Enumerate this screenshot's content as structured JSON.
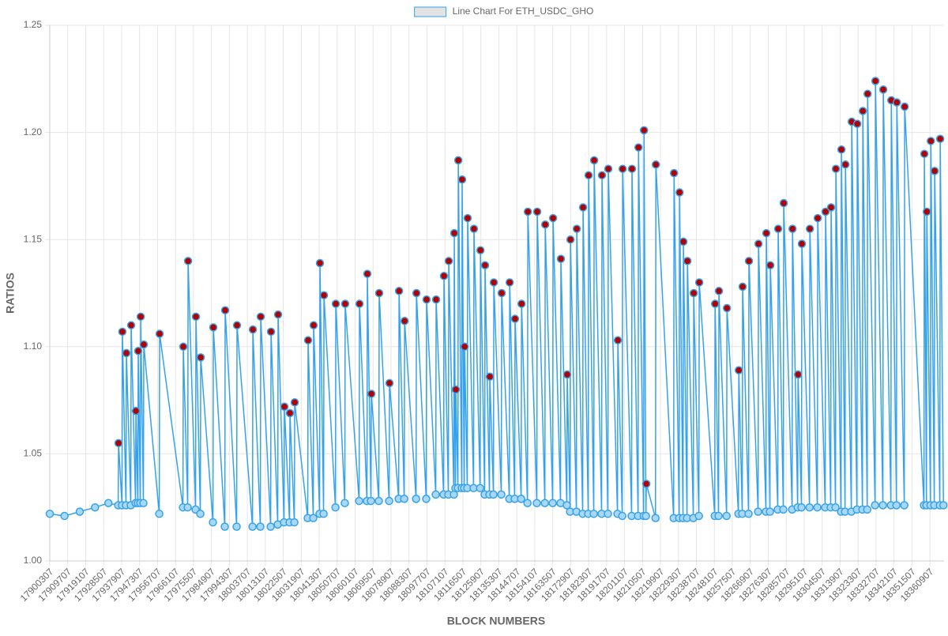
{
  "chart_data": {
    "type": "line",
    "legend_label": "Line Chart For ETH_USDC_GHO",
    "xlabel": "BLOCK NUMBERS",
    "ylabel": "RATIOS",
    "grid": true,
    "legend_position": "top",
    "xlim": [
      17900307,
      18368307
    ],
    "xticks": [
      17900307,
      17909707,
      17919107,
      17928507,
      17937907,
      17947307,
      17956707,
      17966107,
      17975507,
      17984907,
      17994307,
      18003707,
      18013107,
      18022507,
      18031907,
      18041307,
      18050707,
      18060107,
      18069507,
      18078907,
      18088307,
      18097707,
      18107107,
      18116507,
      18125907,
      18135307,
      18144707,
      18154107,
      18163507,
      18172907,
      18182307,
      18191707,
      18201107,
      18210507,
      18219907,
      18229307,
      18238707,
      18248107,
      18257507,
      18266907,
      18276307,
      18285707,
      18295107,
      18304507,
      18313907,
      18323307,
      18332707,
      18342107,
      18351507,
      18360907
    ],
    "ylim": [
      1.0,
      1.25
    ],
    "yticks": [
      {
        "value": 1.0,
        "label": "1.00"
      },
      1.05,
      {
        "value": 1.1,
        "label": "1.10"
      },
      1.15,
      {
        "value": 1.2,
        "label": "1.20"
      },
      1.25
    ],
    "series": [
      {
        "name": "Line Chart For ETH_USDC_GHO",
        "color": "#36a2eb",
        "legend_fill": "#e3e3e3",
        "x": [
          17900307,
          17908000,
          17916000,
          17924000,
          17931000,
          17936100,
          17936300,
          17938100,
          17938300,
          17940200,
          17940400,
          17942700,
          17942900,
          17945200,
          17945400,
          17946400,
          17946600,
          17947700,
          17947900,
          17949300,
          17949500,
          17957600,
          17957800,
          17970000,
          17970200,
          17972500,
          17972700,
          17976600,
          17976800,
          17979100,
          17979300,
          17985700,
          17985900,
          17991900,
          17992100,
          17998100,
          17998300,
          18006400,
          18006600,
          18010500,
          18010700,
          18015900,
          18016100,
          18019600,
          18019800,
          18022900,
          18023100,
          18025800,
          18026000,
          18028300,
          18028500,
          18035300,
          18035500,
          18038200,
          18038400,
          18041500,
          18041700,
          18043600,
          18043800,
          18049800,
          18050000,
          18054700,
          18054900,
          18062200,
          18062400,
          18066300,
          18066500,
          18068400,
          18068600,
          18072500,
          18072700,
          18077900,
          18078100,
          18082900,
          18083100,
          18085800,
          18086000,
          18092000,
          18092200,
          18097300,
          18097500,
          18102300,
          18102500,
          18106400,
          18106600,
          18108900,
          18109100,
          18111800,
          18112000,
          18112600,
          18112800,
          18113900,
          18114100,
          18115900,
          18116100,
          18117200,
          18117400,
          18118800,
          18119000,
          18122100,
          18122300,
          18125500,
          18125700,
          18127900,
          18128100,
          18130400,
          18130600,
          18132500,
          18132700,
          18136600,
          18136800,
          18140800,
          18141000,
          18143600,
          18143800,
          18147000,
          18147200,
          18150300,
          18150500,
          18155200,
          18155400,
          18159400,
          18159600,
          18163500,
          18163700,
          18167600,
          18167800,
          18170900,
          18171100,
          18172600,
          18172800,
          18175900,
          18176100,
          18179200,
          18179400,
          18182100,
          18182300,
          18185000,
          18185200,
          18189100,
          18189300,
          18192400,
          18192600,
          18197400,
          18197600,
          18199900,
          18200100,
          18204800,
          18205000,
          18208200,
          18208400,
          18211100,
          18211300,
          18212300,
          18212500,
          18217300,
          18217500,
          18226800,
          18227000,
          18229700,
          18229900,
          18231700,
          18231900,
          18233800,
          18234000,
          18237100,
          18237300,
          18240000,
          18240200,
          18248300,
          18248500,
          18250300,
          18250500,
          18254500,
          18254700,
          18260700,
          18260900,
          18262700,
          18262900,
          18266000,
          18266200,
          18271000,
          18271200,
          18275100,
          18275300,
          18277200,
          18277400,
          18281300,
          18281500,
          18284200,
          18284400,
          18288800,
          18289000,
          18291700,
          18291900,
          18293700,
          18293900,
          18297900,
          18298100,
          18302000,
          18302200,
          18306100,
          18306300,
          18309000,
          18309200,
          18311500,
          18311700,
          18314400,
          18314600,
          18316500,
          18316700,
          18319800,
          18320000,
          18322700,
          18322900,
          18325600,
          18325800,
          18328100,
          18328300,
          18332200,
          18332400,
          18336300,
          18336500,
          18340500,
          18340700,
          18343400,
          18343600,
          18347500,
          18347700,
          18357800,
          18358000,
          18359100,
          18359300,
          18361200,
          18361400,
          18363200,
          18363400,
          18366100,
          18366300,
          18368000
        ],
        "values": [
          1.022,
          1.021,
          1.023,
          1.025,
          1.027,
          1.026,
          1.055,
          1.026,
          1.107,
          1.026,
          1.097,
          1.026,
          1.11,
          1.027,
          1.07,
          1.027,
          1.098,
          1.027,
          1.114,
          1.027,
          1.101,
          1.022,
          1.106,
          1.025,
          1.1,
          1.025,
          1.14,
          1.024,
          1.114,
          1.022,
          1.095,
          1.018,
          1.109,
          1.016,
          1.117,
          1.016,
          1.11,
          1.016,
          1.108,
          1.016,
          1.114,
          1.016,
          1.107,
          1.017,
          1.115,
          1.018,
          1.072,
          1.018,
          1.069,
          1.018,
          1.074,
          1.02,
          1.103,
          1.02,
          1.11,
          1.022,
          1.139,
          1.022,
          1.124,
          1.025,
          1.12,
          1.027,
          1.12,
          1.028,
          1.12,
          1.028,
          1.134,
          1.028,
          1.078,
          1.028,
          1.125,
          1.028,
          1.083,
          1.029,
          1.126,
          1.029,
          1.112,
          1.029,
          1.125,
          1.029,
          1.122,
          1.031,
          1.122,
          1.031,
          1.133,
          1.031,
          1.14,
          1.031,
          1.153,
          1.034,
          1.08,
          1.034,
          1.187,
          1.034,
          1.178,
          1.034,
          1.1,
          1.034,
          1.16,
          1.034,
          1.155,
          1.034,
          1.145,
          1.031,
          1.138,
          1.031,
          1.086,
          1.031,
          1.13,
          1.031,
          1.125,
          1.029,
          1.13,
          1.029,
          1.113,
          1.029,
          1.12,
          1.027,
          1.163,
          1.027,
          1.163,
          1.027,
          1.157,
          1.027,
          1.16,
          1.027,
          1.141,
          1.026,
          1.087,
          1.023,
          1.15,
          1.023,
          1.155,
          1.022,
          1.165,
          1.022,
          1.18,
          1.022,
          1.187,
          1.022,
          1.18,
          1.022,
          1.183,
          1.022,
          1.103,
          1.021,
          1.183,
          1.021,
          1.183,
          1.021,
          1.193,
          1.021,
          1.201,
          1.021,
          1.036,
          1.02,
          1.185,
          1.02,
          1.181,
          1.02,
          1.172,
          1.02,
          1.149,
          1.02,
          1.14,
          1.02,
          1.125,
          1.021,
          1.13,
          1.021,
          1.12,
          1.021,
          1.126,
          1.021,
          1.118,
          1.022,
          1.089,
          1.022,
          1.128,
          1.022,
          1.14,
          1.023,
          1.148,
          1.023,
          1.153,
          1.023,
          1.138,
          1.024,
          1.155,
          1.024,
          1.167,
          1.024,
          1.155,
          1.025,
          1.087,
          1.025,
          1.148,
          1.025,
          1.155,
          1.025,
          1.16,
          1.025,
          1.163,
          1.025,
          1.165,
          1.025,
          1.183,
          1.023,
          1.192,
          1.023,
          1.185,
          1.023,
          1.205,
          1.024,
          1.204,
          1.024,
          1.21,
          1.024,
          1.218,
          1.026,
          1.224,
          1.026,
          1.22,
          1.026,
          1.215,
          1.026,
          1.214,
          1.026,
          1.212,
          1.026,
          1.19,
          1.026,
          1.163,
          1.026,
          1.196,
          1.026,
          1.182,
          1.026,
          1.197,
          1.026
        ],
        "point_colors": [
          "#a8d8f8",
          "#a8d8f8",
          "#a8d8f8",
          "#a8d8f8",
          "#a8d8f8",
          "#a8d8f8",
          "#b30000",
          "#a8d8f8",
          "#b30000",
          "#a8d8f8",
          "#b30000",
          "#a8d8f8",
          "#b30000",
          "#a8d8f8",
          "#b30000",
          "#a8d8f8",
          "#b30000",
          "#a8d8f8",
          "#b30000",
          "#a8d8f8",
          "#b30000",
          "#a8d8f8",
          "#b30000",
          "#a8d8f8",
          "#b30000",
          "#a8d8f8",
          "#b30000",
          "#a8d8f8",
          "#b30000",
          "#a8d8f8",
          "#b30000",
          "#a8d8f8",
          "#b30000",
          "#a8d8f8",
          "#b30000",
          "#a8d8f8",
          "#b30000",
          "#a8d8f8",
          "#b30000",
          "#a8d8f8",
          "#b30000",
          "#a8d8f8",
          "#b30000",
          "#a8d8f8",
          "#b30000",
          "#a8d8f8",
          "#b30000",
          "#a8d8f8",
          "#b30000",
          "#a8d8f8",
          "#b30000",
          "#a8d8f8",
          "#b30000",
          "#a8d8f8",
          "#b30000",
          "#a8d8f8",
          "#b30000",
          "#a8d8f8",
          "#b30000",
          "#a8d8f8",
          "#b30000",
          "#a8d8f8",
          "#b30000",
          "#a8d8f8",
          "#b30000",
          "#a8d8f8",
          "#b30000",
          "#a8d8f8",
          "#b30000",
          "#a8d8f8",
          "#b30000",
          "#a8d8f8",
          "#b30000",
          "#a8d8f8",
          "#b30000",
          "#a8d8f8",
          "#b30000",
          "#a8d8f8",
          "#b30000",
          "#a8d8f8",
          "#b30000",
          "#a8d8f8",
          "#b30000",
          "#a8d8f8",
          "#b30000",
          "#a8d8f8",
          "#b30000",
          "#a8d8f8",
          "#b30000",
          "#a8d8f8",
          "#b30000",
          "#a8d8f8",
          "#b30000",
          "#a8d8f8",
          "#b30000",
          "#a8d8f8",
          "#b30000",
          "#a8d8f8",
          "#b30000",
          "#a8d8f8",
          "#b30000",
          "#a8d8f8",
          "#b30000",
          "#a8d8f8",
          "#b30000",
          "#a8d8f8",
          "#b30000",
          "#a8d8f8",
          "#b30000",
          "#a8d8f8",
          "#b30000",
          "#a8d8f8",
          "#b30000",
          "#a8d8f8",
          "#b30000",
          "#a8d8f8",
          "#b30000",
          "#a8d8f8",
          "#b30000",
          "#a8d8f8",
          "#b30000",
          "#a8d8f8",
          "#b30000",
          "#a8d8f8",
          "#b30000",
          "#a8d8f8",
          "#b30000",
          "#a8d8f8",
          "#b30000",
          "#a8d8f8",
          "#b30000",
          "#a8d8f8",
          "#b30000",
          "#a8d8f8",
          "#b30000",
          "#a8d8f8",
          "#b30000",
          "#a8d8f8",
          "#b30000",
          "#a8d8f8",
          "#b30000",
          "#a8d8f8",
          "#b30000",
          "#a8d8f8",
          "#b30000",
          "#a8d8f8",
          "#b30000",
          "#a8d8f8",
          "#b30000",
          "#a8d8f8",
          "#b30000",
          "#a8d8f8",
          "#b30000",
          "#a8d8f8",
          "#b30000",
          "#a8d8f8",
          "#b30000",
          "#a8d8f8",
          "#b30000",
          "#a8d8f8",
          "#b30000",
          "#a8d8f8",
          "#b30000",
          "#a8d8f8",
          "#b30000",
          "#a8d8f8",
          "#b30000",
          "#a8d8f8",
          "#b30000",
          "#a8d8f8",
          "#b30000",
          "#a8d8f8",
          "#b30000",
          "#a8d8f8",
          "#b30000",
          "#a8d8f8",
          "#b30000",
          "#a8d8f8",
          "#b30000",
          "#a8d8f8",
          "#b30000",
          "#a8d8f8",
          "#b30000",
          "#a8d8f8",
          "#b30000",
          "#a8d8f8",
          "#b30000",
          "#a8d8f8",
          "#b30000",
          "#a8d8f8",
          "#b30000",
          "#a8d8f8",
          "#b30000",
          "#a8d8f8",
          "#b30000",
          "#a8d8f8",
          "#b30000",
          "#a8d8f8",
          "#b30000",
          "#a8d8f8",
          "#b30000",
          "#a8d8f8",
          "#b30000",
          "#a8d8f8",
          "#b30000",
          "#a8d8f8",
          "#b30000",
          "#a8d8f8",
          "#b30000",
          "#a8d8f8",
          "#b30000",
          "#a8d8f8",
          "#b30000",
          "#a8d8f8",
          "#b30000",
          "#a8d8f8",
          "#b30000",
          "#a8d8f8",
          "#b30000",
          "#a8d8f8",
          "#b30000",
          "#a8d8f8",
          "#b30000",
          "#a8d8f8",
          "#b30000",
          "#a8d8f8",
          "#b30000",
          "#a8d8f8",
          "#b30000",
          "#a8d8f8",
          "#b30000",
          "#a8d8f8",
          "#b30000",
          "#a8d8f8",
          "#b30000",
          "#a8d8f8",
          "#b30000",
          "#a8d8f8",
          "#b30000",
          "#a8d8f8"
        ]
      }
    ]
  }
}
